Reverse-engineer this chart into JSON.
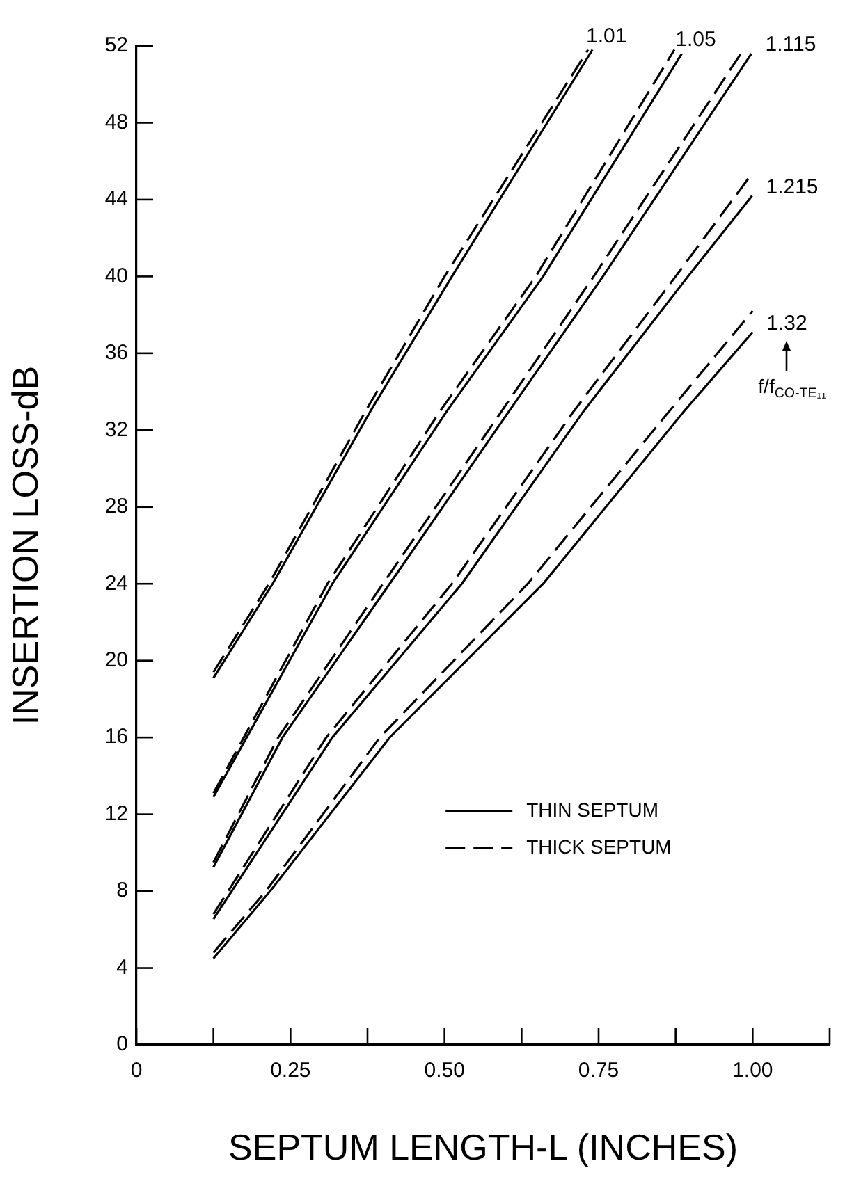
{
  "chart_data": {
    "type": "line",
    "xlabel": "SEPTUM LENGTH-L (INCHES)",
    "ylabel": "INSERTION LOSS-dB",
    "xlim": [
      0,
      1.125
    ],
    "xticks": [
      0,
      {
        "value": 0.125,
        "label": null
      },
      0.25,
      {
        "value": 0.375,
        "label": null
      },
      {
        "value": 0.5,
        "label": "0.50"
      },
      {
        "value": 0.625,
        "label": null
      },
      0.75,
      {
        "value": 0.875,
        "label": null
      },
      {
        "value": 1,
        "label": "1.00"
      },
      {
        "value": 1.125,
        "label": null
      }
    ],
    "ylim": [
      0,
      52
    ],
    "yticks": [
      0,
      4,
      8,
      12,
      16,
      20,
      24,
      28,
      32,
      36,
      40,
      44,
      48,
      52
    ],
    "grid": false,
    "marker": "none",
    "annotations": [
      "THIN SEPTUM",
      "THICK SEPTUM",
      "f/f$_{CO-TE₁₁}$"
    ],
    "series": [
      {
        "name": "1.01",
        "color": "#000000",
        "line_style": "solid",
        "x": [
          0.125,
          0.221,
          0.38,
          0.512,
          0.74
        ],
        "values": [
          19.1,
          24,
          33,
          40,
          51.8
        ]
      },
      {
        "color": "#000000",
        "line_style": "dashed",
        "x": [
          0.125,
          0.215,
          0.372,
          0.5,
          0.733
        ],
        "values": [
          19.4,
          24,
          33,
          40,
          51.8
        ]
      },
      {
        "name": "1.05",
        "color": "#000000",
        "line_style": "solid",
        "x": [
          0.125,
          0.318,
          0.504,
          0.66,
          0.885
        ],
        "values": [
          12.9,
          24,
          33,
          40,
          51.6
        ]
      },
      {
        "color": "#000000",
        "line_style": "dashed",
        "x": [
          0.125,
          0.31,
          0.493,
          0.648,
          0.873
        ],
        "values": [
          13.1,
          24,
          33,
          40,
          51.8
        ]
      },
      {
        "name": "1.115",
        "color": "#000000",
        "line_style": "solid",
        "x": [
          0.125,
          0.237,
          0.411,
          0.605,
          0.757,
          0.998
        ],
        "values": [
          9.25,
          16,
          24,
          33,
          40,
          51.6
        ]
      },
      {
        "color": "#000000",
        "line_style": "dashed",
        "x": [
          0.125,
          0.23,
          0.4,
          0.593,
          0.742,
          0.985
        ],
        "values": [
          9.5,
          16,
          24,
          33,
          40,
          51.8
        ]
      },
      {
        "name": "1.215",
        "color": "#000000",
        "line_style": "solid",
        "x": [
          0.125,
          0.318,
          0.528,
          0.726,
          0.895,
          0.999
        ],
        "values": [
          6.55,
          16,
          24,
          33,
          40,
          44.2
        ]
      },
      {
        "color": "#000000",
        "line_style": "dashed",
        "x": [
          0.125,
          0.308,
          0.512,
          0.71,
          0.875,
          1.0
        ],
        "values": [
          6.8,
          16,
          24,
          33,
          40,
          45.4
        ]
      },
      {
        "name": "1.32",
        "color": "#000000",
        "line_style": "solid",
        "x": [
          0.125,
          0.217,
          0.411,
          0.66,
          0.889,
          1.0
        ],
        "values": [
          4.5,
          8,
          16,
          24,
          33,
          37.1
        ]
      },
      {
        "color": "#000000",
        "line_style": "dashed",
        "x": [
          0.125,
          0.21,
          0.395,
          0.635,
          0.865,
          1.0
        ],
        "values": [
          4.8,
          8,
          16,
          24,
          33,
          38.2
        ]
      }
    ]
  }
}
